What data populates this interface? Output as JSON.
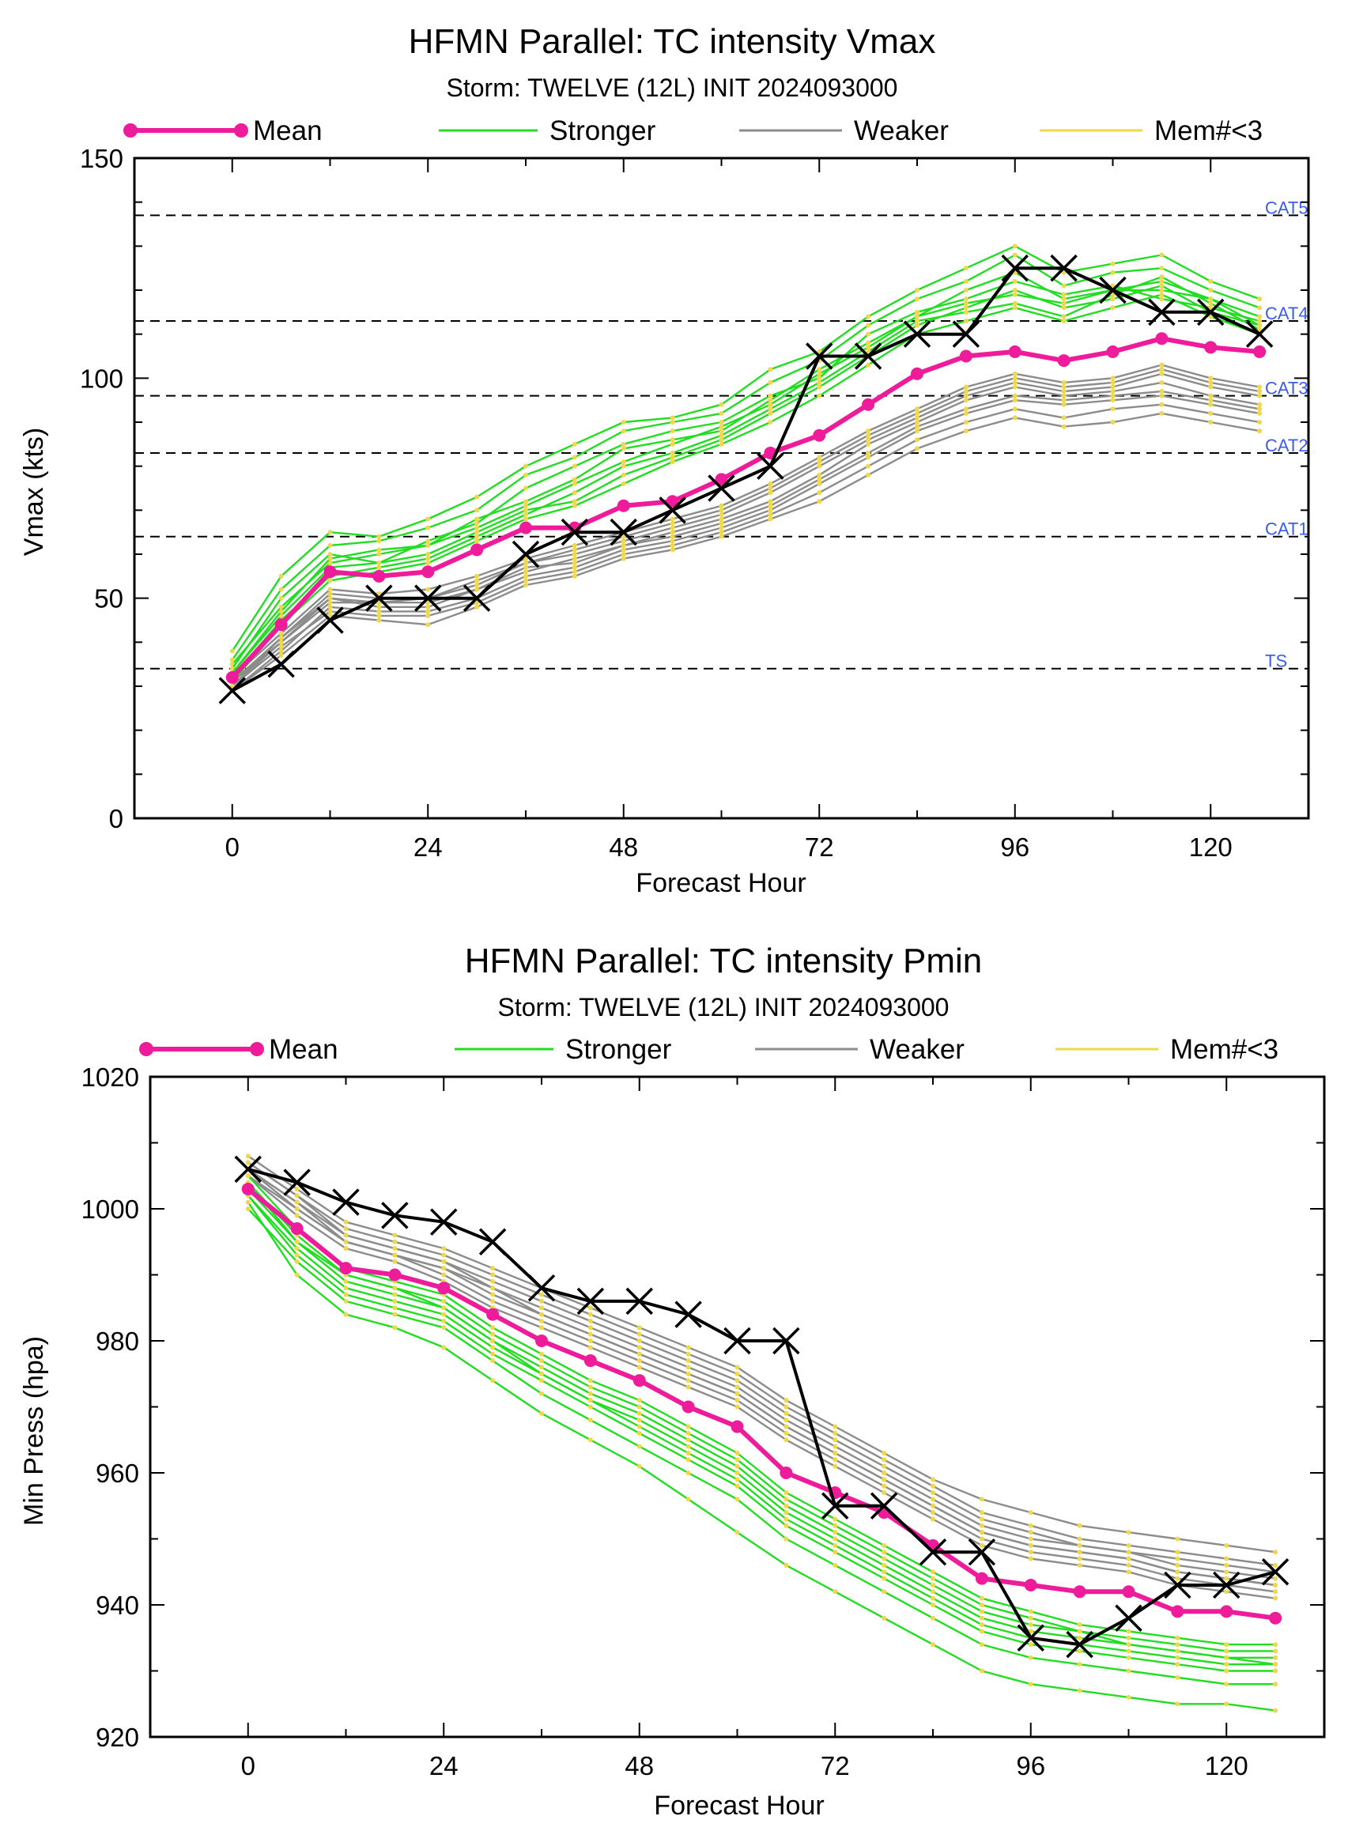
{
  "legend": [
    {
      "key": "mean",
      "label": "Mean",
      "color": "#ee1c9a"
    },
    {
      "key": "stronger",
      "label": "Stronger",
      "color": "#22dd22"
    },
    {
      "key": "weaker",
      "label": "Weaker",
      "color": "#8c8c8c"
    },
    {
      "key": "few",
      "label": "Mem#<3",
      "color": "#f0d84a"
    }
  ],
  "colors": {
    "mean": "#ee1c9a",
    "stronger": "#22dd22",
    "weaker": "#8c8c8c",
    "member_dot": "#f0d84a",
    "observed": "#000000",
    "category_label": "#3a5df0"
  },
  "chart_data": [
    {
      "type": "line",
      "title": "HFMN Parallel: TC intensity Vmax",
      "subtitle": "Storm: TWELVE (12L) INIT 2024093000",
      "xlabel": "Forecast Hour",
      "ylabel": "Vmax (kts)",
      "xlim": [
        -12,
        132
      ],
      "ylim": [
        0,
        150
      ],
      "xticks": [
        0,
        24,
        48,
        72,
        96,
        120
      ],
      "yticks": [
        0,
        50,
        100,
        150
      ],
      "grid": false,
      "legend_position": "top",
      "reference_lines": [
        {
          "label": "TS",
          "value": 34
        },
        {
          "label": "CAT1",
          "value": 64
        },
        {
          "label": "CAT2",
          "value": 83
        },
        {
          "label": "CAT3",
          "value": 96
        },
        {
          "label": "CAT4",
          "value": 113
        },
        {
          "label": "CAT5",
          "value": 137
        }
      ],
      "x": [
        0,
        6,
        12,
        18,
        24,
        30,
        36,
        42,
        48,
        54,
        60,
        66,
        72,
        78,
        84,
        90,
        96,
        102,
        108,
        114,
        120,
        126
      ],
      "series": [
        {
          "name": "Mean",
          "values": [
            32,
            44,
            56,
            55,
            56,
            61,
            66,
            66,
            71,
            72,
            77,
            83,
            87,
            94,
            101,
            105,
            106,
            104,
            106,
            109,
            107,
            106
          ]
        },
        {
          "name": "Observed",
          "values": [
            29,
            35,
            45,
            50,
            50,
            50,
            60,
            65,
            65,
            70,
            75,
            80,
            105,
            105,
            110,
            110,
            125,
            125,
            120,
            115,
            115,
            110
          ]
        }
      ],
      "member_series": {
        "stronger": [
          [
            35,
            48,
            58,
            60,
            62,
            68,
            72,
            77,
            84,
            86,
            88,
            95,
            102,
            108,
            114,
            120,
            124,
            118,
            120,
            122,
            118,
            114
          ],
          [
            33,
            46,
            57,
            58,
            60,
            65,
            70,
            72,
            78,
            82,
            86,
            92,
            98,
            105,
            112,
            116,
            120,
            116,
            118,
            121,
            115,
            112
          ],
          [
            34,
            50,
            60,
            58,
            63,
            67,
            75,
            80,
            85,
            88,
            90,
            96,
            100,
            110,
            115,
            118,
            122,
            119,
            121,
            118,
            116,
            113
          ],
          [
            32,
            45,
            55,
            57,
            59,
            64,
            69,
            74,
            80,
            83,
            87,
            93,
            99,
            106,
            113,
            115,
            117,
            114,
            119,
            123,
            117,
            111
          ],
          [
            36,
            52,
            62,
            63,
            66,
            70,
            78,
            82,
            88,
            90,
            92,
            99,
            104,
            112,
            118,
            122,
            128,
            121,
            124,
            125,
            120,
            116
          ],
          [
            31,
            44,
            54,
            56,
            58,
            63,
            68,
            71,
            76,
            81,
            85,
            90,
            96,
            103,
            110,
            113,
            116,
            113,
            116,
            119,
            114,
            110
          ],
          [
            38,
            55,
            65,
            64,
            68,
            73,
            80,
            85,
            90,
            91,
            94,
            102,
            106,
            114,
            120,
            125,
            130,
            124,
            126,
            128,
            122,
            118
          ],
          [
            33,
            47,
            59,
            61,
            62,
            66,
            71,
            76,
            81,
            85,
            89,
            94,
            101,
            107,
            114,
            117,
            119,
            117,
            120,
            120,
            118,
            112
          ]
        ],
        "weaker": [
          [
            30,
            40,
            50,
            48,
            48,
            52,
            57,
            58,
            62,
            65,
            68,
            72,
            78,
            85,
            90,
            95,
            98,
            96,
            97,
            99,
            96,
            94
          ],
          [
            29,
            38,
            48,
            47,
            47,
            50,
            55,
            57,
            61,
            63,
            66,
            70,
            76,
            82,
            88,
            92,
            95,
            94,
            95,
            96,
            94,
            92
          ],
          [
            31,
            41,
            51,
            50,
            50,
            53,
            58,
            60,
            63,
            66,
            69,
            74,
            80,
            86,
            91,
            96,
            99,
            97,
            98,
            101,
            98,
            96
          ],
          [
            30,
            39,
            47,
            46,
            46,
            49,
            54,
            56,
            60,
            62,
            65,
            69,
            74,
            80,
            86,
            90,
            93,
            91,
            93,
            94,
            92,
            90
          ],
          [
            32,
            42,
            52,
            51,
            52,
            55,
            59,
            62,
            65,
            68,
            71,
            76,
            82,
            88,
            93,
            98,
            101,
            99,
            100,
            103,
            100,
            98
          ],
          [
            29,
            37,
            46,
            45,
            44,
            48,
            53,
            55,
            59,
            61,
            64,
            68,
            72,
            78,
            84,
            88,
            91,
            89,
            90,
            92,
            90,
            88
          ],
          [
            31,
            40,
            49,
            49,
            49,
            52,
            56,
            59,
            62,
            64,
            67,
            71,
            77,
            83,
            89,
            93,
            96,
            95,
            96,
            97,
            95,
            93
          ],
          [
            30,
            41,
            50,
            49,
            50,
            54,
            58,
            61,
            64,
            67,
            70,
            75,
            81,
            87,
            92,
            97,
            100,
            98,
            99,
            102,
            99,
            97
          ]
        ]
      }
    },
    {
      "type": "line",
      "title": "HFMN Parallel: TC intensity Pmin",
      "subtitle": "Storm: TWELVE (12L) INIT 2024093000",
      "xlabel": "Forecast Hour",
      "ylabel": "Min Press (hpa)",
      "xlim": [
        -12,
        132
      ],
      "ylim": [
        920,
        1020
      ],
      "xticks": [
        0,
        24,
        48,
        72,
        96,
        120
      ],
      "yticks": [
        920,
        940,
        960,
        980,
        1000,
        1020
      ],
      "grid": false,
      "legend_position": "top",
      "x": [
        0,
        6,
        12,
        18,
        24,
        30,
        36,
        42,
        48,
        54,
        60,
        66,
        72,
        78,
        84,
        90,
        96,
        102,
        108,
        114,
        120,
        126
      ],
      "series": [
        {
          "name": "Mean",
          "values": [
            1003,
            997,
            991,
            990,
            988,
            984,
            980,
            977,
            974,
            970,
            967,
            960,
            957,
            954,
            949,
            944,
            943,
            942,
            942,
            939,
            939,
            938
          ]
        },
        {
          "name": "Observed",
          "values": [
            1006,
            1004,
            1001,
            999,
            998,
            995,
            988,
            986,
            986,
            984,
            980,
            980,
            955,
            955,
            948,
            948,
            935,
            934,
            938,
            943,
            943,
            945
          ]
        }
      ],
      "member_series": {
        "stronger": [
          [
            1002,
            994,
            988,
            986,
            984,
            979,
            975,
            971,
            968,
            964,
            960,
            954,
            950,
            946,
            942,
            938,
            936,
            935,
            934,
            933,
            932,
            932
          ],
          [
            1004,
            996,
            990,
            988,
            986,
            981,
            977,
            973,
            970,
            966,
            962,
            956,
            952,
            948,
            944,
            940,
            938,
            936,
            935,
            934,
            933,
            933
          ],
          [
            1000,
            992,
            986,
            984,
            982,
            977,
            972,
            968,
            964,
            960,
            956,
            950,
            946,
            942,
            938,
            934,
            932,
            931,
            930,
            929,
            928,
            928
          ],
          [
            1003,
            995,
            989,
            987,
            985,
            980,
            976,
            972,
            969,
            965,
            961,
            955,
            951,
            947,
            943,
            939,
            937,
            936,
            934,
            933,
            932,
            931
          ],
          [
            1001,
            990,
            984,
            982,
            979,
            974,
            969,
            965,
            961,
            956,
            951,
            946,
            942,
            938,
            934,
            930,
            928,
            927,
            926,
            925,
            925,
            924
          ],
          [
            1005,
            997,
            991,
            989,
            987,
            982,
            978,
            974,
            971,
            967,
            963,
            957,
            953,
            949,
            945,
            941,
            939,
            937,
            936,
            935,
            934,
            934
          ],
          [
            1002,
            993,
            987,
            985,
            983,
            978,
            974,
            970,
            966,
            962,
            958,
            952,
            948,
            944,
            940,
            936,
            934,
            933,
            932,
            931,
            930,
            930
          ],
          [
            1004,
            995,
            990,
            988,
            985,
            980,
            975,
            971,
            967,
            963,
            959,
            953,
            949,
            945,
            941,
            937,
            935,
            934,
            933,
            932,
            931,
            931
          ]
        ],
        "weaker": [
          [
            1006,
            1001,
            996,
            994,
            992,
            988,
            985,
            982,
            979,
            976,
            973,
            968,
            964,
            960,
            956,
            952,
            950,
            949,
            948,
            946,
            945,
            944
          ],
          [
            1007,
            1002,
            997,
            995,
            993,
            990,
            987,
            984,
            981,
            978,
            975,
            970,
            966,
            962,
            958,
            954,
            952,
            950,
            949,
            948,
            947,
            946
          ],
          [
            1005,
            1000,
            995,
            993,
            991,
            987,
            984,
            981,
            978,
            975,
            972,
            967,
            963,
            959,
            955,
            951,
            949,
            948,
            947,
            945,
            944,
            943
          ],
          [
            1008,
            1003,
            998,
            996,
            994,
            991,
            988,
            985,
            982,
            979,
            976,
            971,
            967,
            963,
            959,
            956,
            954,
            952,
            951,
            950,
            949,
            948
          ],
          [
            1006,
            1000,
            995,
            993,
            990,
            986,
            983,
            980,
            977,
            974,
            971,
            966,
            962,
            958,
            954,
            950,
            948,
            947,
            946,
            944,
            943,
            942
          ],
          [
            1007,
            1002,
            996,
            994,
            992,
            989,
            986,
            983,
            980,
            977,
            974,
            969,
            965,
            961,
            957,
            953,
            951,
            949,
            948,
            947,
            946,
            945
          ],
          [
            1005,
            999,
            994,
            992,
            989,
            985,
            982,
            979,
            976,
            973,
            970,
            965,
            961,
            957,
            953,
            949,
            947,
            946,
            945,
            943,
            942,
            941
          ],
          [
            1006,
            1001,
            995,
            993,
            991,
            988,
            984,
            981,
            978,
            975,
            972,
            967,
            963,
            959,
            955,
            951,
            949,
            948,
            947,
            945,
            944,
            943
          ]
        ]
      }
    }
  ]
}
